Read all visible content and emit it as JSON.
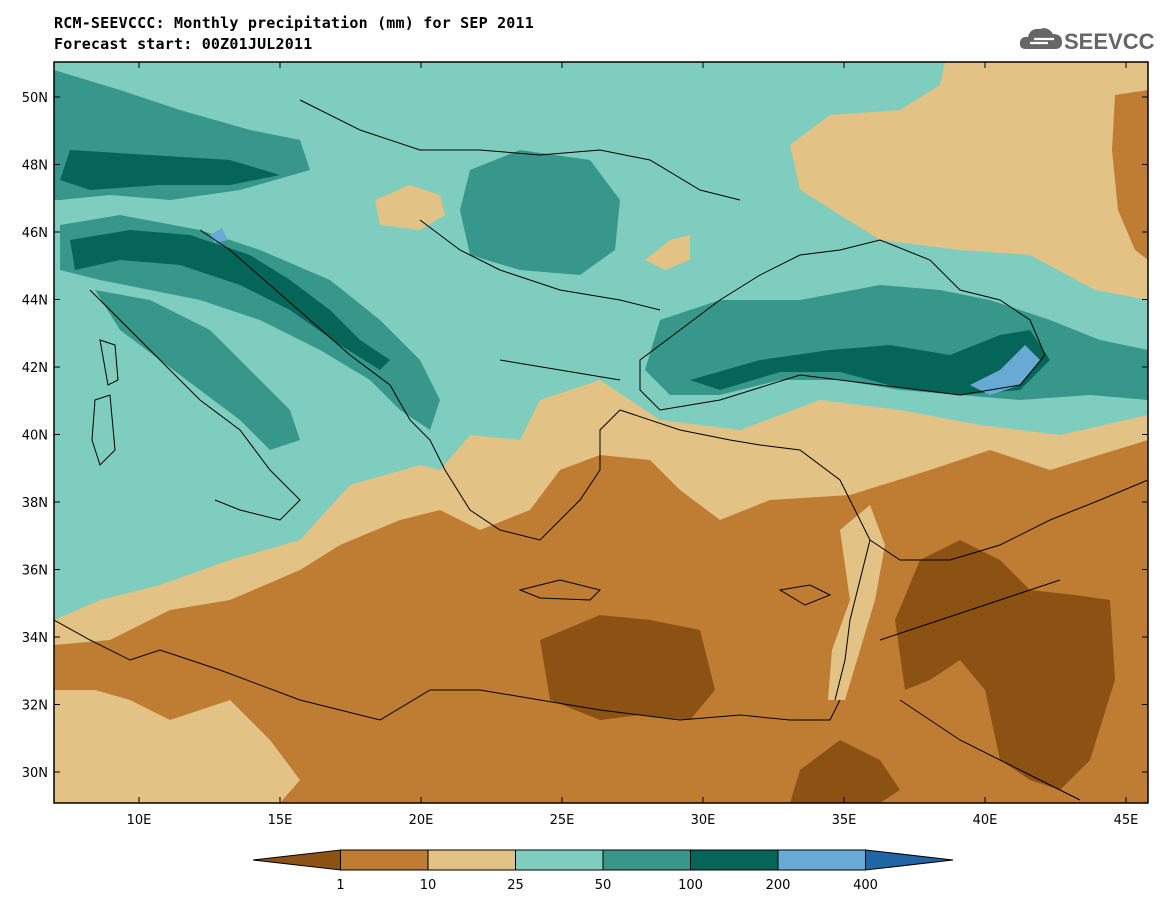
{
  "title_line1": "RCM-SEEVCCC: Monthly precipitation (mm) for SEP 2011",
  "title_line2": "Forecast start: 00Z01JUL2011",
  "logo": {
    "text": "SEEVCCC",
    "icon": "cloud-icon"
  },
  "map": {
    "lat_labels": [
      "50N",
      "48N",
      "46N",
      "44N",
      "42N",
      "40N",
      "38N",
      "36N",
      "34N",
      "32N",
      "30N"
    ],
    "lon_labels": [
      "10E",
      "15E",
      "20E",
      "25E",
      "30E",
      "35E",
      "40E",
      "45E"
    ]
  },
  "colorbar": {
    "colors": [
      "#8b5214",
      "#bf7d34",
      "#e2c285",
      "#7ecdbf",
      "#37978b",
      "#046558",
      "#69aad5",
      "#2165a5"
    ],
    "tick_labels": [
      "1",
      "10",
      "25",
      "50",
      "100",
      "200",
      "400"
    ]
  }
}
